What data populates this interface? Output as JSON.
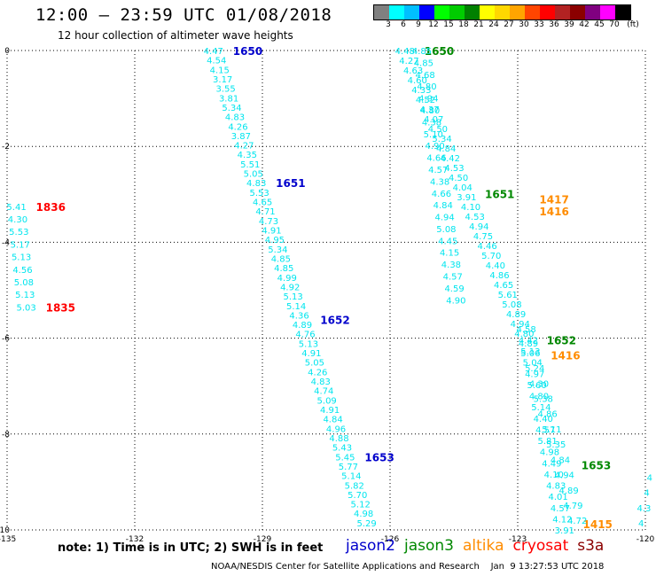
{
  "header": {
    "title": "12:00 — 23:59 UTC 01/08/2018",
    "subtitle": "12 hour collection of altimeter wave heights"
  },
  "colorbar": {
    "unit_label": "(ft)",
    "ticks": [
      "3",
      "6",
      "9",
      "12",
      "15",
      "18",
      "21",
      "24",
      "27",
      "30",
      "33",
      "36",
      "39",
      "42",
      "45",
      "70"
    ],
    "colors": [
      "#808080",
      "#00ffff",
      "#00bfff",
      "#0000ff",
      "#00ff00",
      "#00cc00",
      "#008000",
      "#ffff00",
      "#ffd700",
      "#ffa500",
      "#ff4500",
      "#ff0000",
      "#b22222",
      "#8b0000",
      "#800080",
      "#ff00ff",
      "#000000"
    ]
  },
  "axes": {
    "x_ticks": [
      "-135",
      "-132",
      "-129",
      "-126",
      "-123",
      "-120"
    ],
    "y_ticks": [
      "0",
      "-2",
      "-4",
      "-6",
      "-8",
      "-10"
    ]
  },
  "footer": {
    "note": "note:  1) Time is in UTC;  2) SWH is in feet",
    "satellites": [
      {
        "name": "jason2",
        "color": "#0000cc"
      },
      {
        "name": "jason3",
        "color": "#008800"
      },
      {
        "name": "altika",
        "color": "#ff8c00"
      },
      {
        "name": "cryosat",
        "color": "#ff0000"
      },
      {
        "name": "s3a",
        "color": "#8b0000"
      }
    ],
    "credit": "NOAA/NESDIS Center for Satellite Applications and Research    Jan  9 13:27:53 UTC 2018"
  },
  "colors": {
    "swh": "#00e5ee",
    "grid": "#000000"
  },
  "tracks": [
    {
      "id": "jason2-a",
      "color": "#0000cc",
      "start": [
        -130.15,
        0.0
      ],
      "end": [
        -126.55,
        -9.85
      ],
      "values": [
        "4.47",
        "4.54",
        "4.15",
        "3.17",
        "3.55",
        "3.81",
        "5.34",
        "4.83",
        "4.26",
        "3.87",
        "4.27",
        "4.35",
        "5.51",
        "5.05",
        "4.83",
        "5.53",
        "4.65",
        "4.71",
        "4.73",
        "4.91",
        "4.95",
        "5.34",
        "4.85",
        "4.85",
        "4.99",
        "4.92",
        "5.13",
        "5.14",
        "4.36",
        "4.89",
        "4.76",
        "5.13",
        "4.91",
        "5.05",
        "4.26",
        "4.83",
        "4.74",
        "5.09",
        "4.91",
        "4.84",
        "4.96",
        "4.88",
        "5.43",
        "5.45",
        "5.77",
        "5.14",
        "5.82",
        "5.70",
        "5.12",
        "4.98",
        "5.29"
      ],
      "time_labels": [
        {
          "t": "1650",
          "at": 0.0
        },
        {
          "t": "1651",
          "at": 0.28
        },
        {
          "t": "1652",
          "at": 0.57
        },
        {
          "t": "1653",
          "at": 0.86
        }
      ]
    },
    {
      "id": "jason3-a",
      "color": "#008800",
      "start": [
        -125.65,
        0.0
      ],
      "end": [
        -122.75,
        -6.1
      ],
      "values": [
        "4.48",
        "4.27",
        "4.63",
        "4.60",
        "4.33",
        "4.52",
        "4.37",
        "4.07",
        "4.50",
        "5.34",
        "4.84",
        "4.42",
        "4.53",
        "4.50",
        "4.04",
        "3.91",
        "4.10",
        "4.53",
        "4.94",
        "4.75",
        "4.46",
        "5.70",
        "4.40",
        "4.86",
        "4.65",
        "5.61",
        "5.08",
        "4.89",
        "4.94",
        "4.80",
        "4.89"
      ],
      "time_labels": [
        {
          "t": "1650",
          "at": 0.0
        },
        {
          "t": "1651",
          "at": 0.49
        },
        {
          "t": "1652",
          "at": 0.99
        }
      ]
    },
    {
      "id": "jason3-b",
      "color": "#008800",
      "start": [
        -125.25,
        0.0
      ],
      "end": [
        -124.45,
        -5.2
      ],
      "values": [
        "4.85",
        "4.85",
        "4.68",
        "4.80",
        "4.94",
        "4.80",
        "4.38",
        "5.10",
        "4.90",
        "4.66",
        "4.57",
        "4.38",
        "4.66",
        "4.84",
        "4.94",
        "5.08",
        "4.45",
        "4.15",
        "4.38",
        "4.57",
        "4.59",
        "4.90"
      ],
      "time_labels": []
    },
    {
      "id": "altika-a",
      "color": "#ff8c00",
      "start": [
        -122.8,
        -5.8
      ],
      "end": [
        -121.9,
        -10.0
      ],
      "values": [
        "4.58",
        "4.42",
        "5.13",
        "5.04",
        "4.97",
        "5.60",
        "4.80",
        "5.14",
        "4.40",
        "4.57",
        "5.81",
        "4.98",
        "4.49",
        "4.10",
        "4.83",
        "4.01",
        "4.57",
        "4.12",
        "3.91"
      ],
      "time_labels": [
        {
          "t": "1416",
          "at": 0.13
        },
        {
          "t": "1415",
          "at": 0.97
        }
      ]
    },
    {
      "id": "jason3-c",
      "color": "#008800",
      "start": [
        -122.7,
        -6.3
      ],
      "end": [
        -121.6,
        -9.8
      ],
      "values": [
        "5.06",
        "5.24",
        "4.30",
        "5.38",
        "4.86",
        "5.11",
        "5.35",
        "4.84",
        "4.94",
        "4.89",
        "4.79",
        "4.72"
      ],
      "time_labels": [
        {
          "t": "1653",
          "at": 0.67
        }
      ]
    },
    {
      "id": "cryosat-a",
      "color": "#ff0000",
      "start": [
        -134.78,
        -3.25
      ],
      "end": [
        -134.55,
        -5.35
      ],
      "values": [
        "5.41",
        "4.30",
        "5.53",
        "5.17",
        "5.13",
        "4.56",
        "5.08",
        "5.13",
        "5.03"
      ],
      "time_labels": [
        {
          "t": "1836",
          "at": 0.0
        },
        {
          "t": "1835",
          "at": 1.0
        }
      ]
    },
    {
      "id": "edge-a",
      "color": "#0000cc",
      "start": [
        -119.9,
        -8.9
      ],
      "end": [
        -120.1,
        -9.85
      ],
      "values": [
        "4",
        "4",
        "4.3",
        "4"
      ],
      "time_labels": []
    }
  ],
  "extra_time_labels": [
    {
      "t": "1417",
      "color": "#ff8c00",
      "lon": -122.95,
      "lat": -3.1
    },
    {
      "t": "1416",
      "color": "#ff8c00",
      "lon": -122.95,
      "lat": -3.35
    }
  ]
}
